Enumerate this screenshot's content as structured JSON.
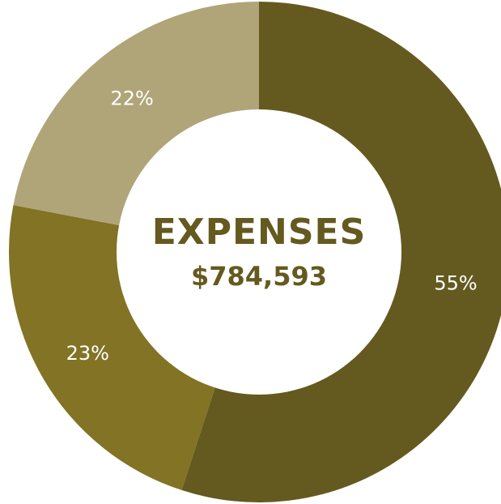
{
  "chart_data": {
    "type": "pie",
    "donut": true,
    "title": "EXPENSES",
    "total_label": "$784,593",
    "title_color": "#645a1f",
    "slices": [
      {
        "label": "55%",
        "value": 55,
        "color": "#645a1f"
      },
      {
        "label": "23%",
        "value": 23,
        "color": "#827325"
      },
      {
        "label": "22%",
        "value": 22,
        "color": "#b0a578"
      }
    ]
  }
}
